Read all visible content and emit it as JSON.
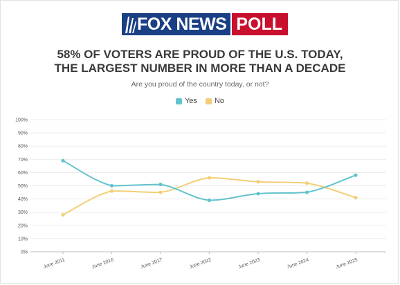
{
  "logo": {
    "fox": "FOX NEWS",
    "poll": "POLL"
  },
  "chart_data": {
    "type": "line",
    "title": "58% OF VOTERS ARE PROUD OF THE U.S. TODAY,",
    "title_line2": "THE LARGEST NUMBER IN MORE THAN A DECADE",
    "subtitle": "Are you proud of the country today, or not?",
    "categories": [
      "June 2011",
      "June 2016",
      "June 2017",
      "June 2022",
      "June 2023",
      "June 2024",
      "June 2025"
    ],
    "series": [
      {
        "name": "Yes",
        "color": "#62c3cd",
        "values": [
          69,
          50,
          51,
          39,
          44,
          45,
          58
        ]
      },
      {
        "name": "No",
        "color": "#f2cf76",
        "values": [
          28,
          46,
          45,
          56,
          53,
          52,
          41
        ]
      }
    ],
    "yticks": [
      "0%",
      "10%",
      "20%",
      "30%",
      "40%",
      "50%",
      "60%",
      "70%",
      "80%",
      "90%",
      "100%"
    ],
    "ylim": [
      0,
      100
    ],
    "grid": true,
    "legend_position": "top-center"
  }
}
